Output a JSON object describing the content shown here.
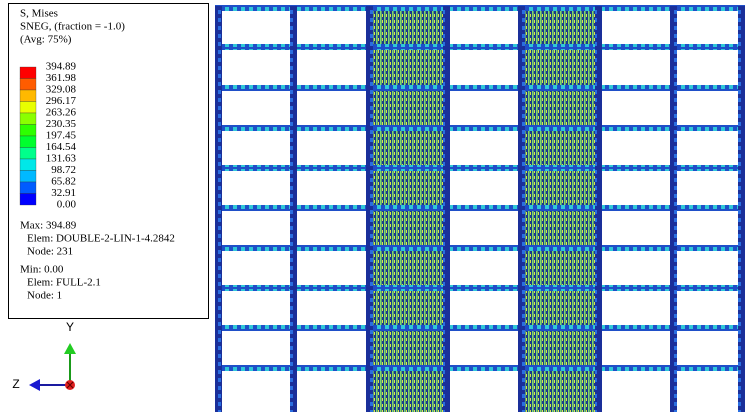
{
  "legend": {
    "title": [
      "S, Mises",
      "SNEG, (fraction = -1.0)",
      "(Avg: 75%)"
    ],
    "levels": [
      "394.89",
      "361.98",
      "329.08",
      "296.17",
      "263.26",
      "230.35",
      "197.45",
      "164.54",
      "131.63",
      "98.72",
      "65.82",
      "32.91",
      "0.00"
    ],
    "colors": [
      "#ff0000",
      "#ff5c00",
      "#ffb900",
      "#e8ff00",
      "#8bff00",
      "#2eff00",
      "#00ff2e",
      "#00ff8b",
      "#00e8e8",
      "#00b9ff",
      "#005cff",
      "#0000ff"
    ],
    "max": [
      "Max: 394.89",
      "Elem: DOUBLE-2-LIN-1-4.2842",
      "Node: 231"
    ],
    "min": [
      "Min: 0.00",
      "Elem: FULL-2.1",
      "Node: 1"
    ]
  },
  "triad": {
    "y": "Y",
    "z": "Z"
  }
}
